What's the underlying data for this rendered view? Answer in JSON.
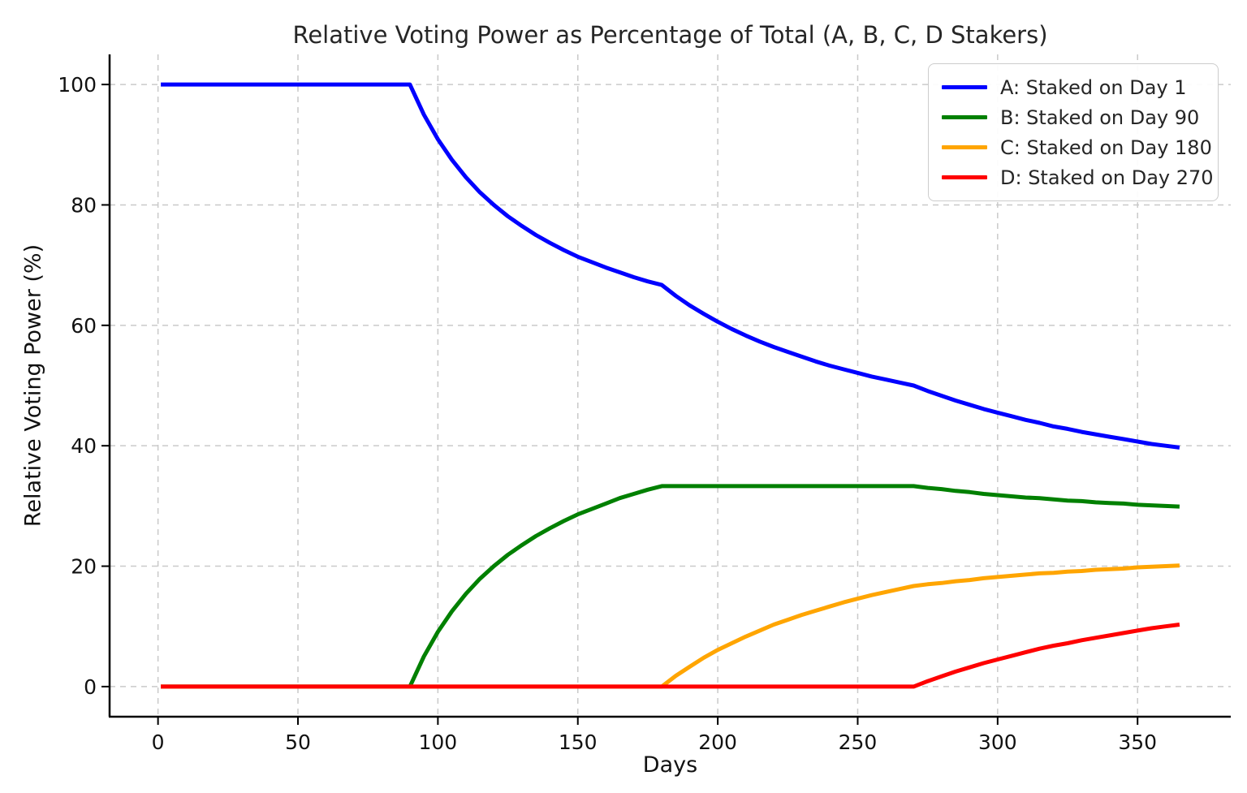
{
  "chart_data": {
    "type": "line",
    "title": "Relative Voting Power as Percentage of Total (A, B, C, D Stakers)",
    "xlabel": "Days",
    "ylabel": "Relative Voting Power (%)",
    "xlim": [
      -17.3,
      383.3
    ],
    "ylim": [
      -5,
      105
    ],
    "x_ticks": [
      0,
      50,
      100,
      150,
      200,
      250,
      300,
      350
    ],
    "y_ticks": [
      0,
      20,
      40,
      60,
      80,
      100
    ],
    "grid": true,
    "legend_position": "upper right",
    "x": [
      1,
      5,
      10,
      15,
      20,
      25,
      30,
      35,
      40,
      45,
      50,
      55,
      60,
      65,
      70,
      75,
      80,
      85,
      90,
      95,
      100,
      105,
      110,
      115,
      120,
      125,
      130,
      135,
      140,
      145,
      150,
      155,
      160,
      165,
      170,
      175,
      180,
      185,
      190,
      195,
      200,
      205,
      210,
      215,
      220,
      225,
      230,
      235,
      240,
      245,
      250,
      255,
      260,
      265,
      270,
      275,
      280,
      285,
      290,
      295,
      300,
      305,
      310,
      315,
      320,
      325,
      330,
      335,
      340,
      345,
      350,
      355,
      360,
      365
    ],
    "series": [
      {
        "name": "A: Staked on Day 1",
        "color": "#0000ff",
        "values": [
          100,
          100,
          100,
          100,
          100,
          100,
          100,
          100,
          100,
          100,
          100,
          100,
          100,
          100,
          100,
          100,
          100,
          100,
          100,
          95,
          90.9,
          87.5,
          84.6,
          82.1,
          80,
          78.1,
          76.5,
          75,
          73.7,
          72.5,
          71.4,
          70.5,
          69.6,
          68.8,
          68,
          67.3,
          66.7,
          64.9,
          63.3,
          61.9,
          60.6,
          59.4,
          58.3,
          57.3,
          56.4,
          55.6,
          54.8,
          54,
          53.3,
          52.7,
          52.1,
          51.5,
          51,
          50.5,
          50,
          49.1,
          48.3,
          47.5,
          46.8,
          46.1,
          45.5,
          44.9,
          44.3,
          43.8,
          43.2,
          42.8,
          42.3,
          41.9,
          41.5,
          41.1,
          40.7,
          40.3,
          40,
          39.7
        ]
      },
      {
        "name": "B: Staked on Day 90",
        "color": "#008000",
        "values": [
          0,
          0,
          0,
          0,
          0,
          0,
          0,
          0,
          0,
          0,
          0,
          0,
          0,
          0,
          0,
          0,
          0,
          0,
          0,
          5,
          9.1,
          12.5,
          15.4,
          17.9,
          20,
          21.9,
          23.5,
          25,
          26.3,
          27.5,
          28.6,
          29.5,
          30.4,
          31.3,
          32,
          32.7,
          33.3,
          33.3,
          33.3,
          33.3,
          33.3,
          33.3,
          33.3,
          33.3,
          33.3,
          33.3,
          33.3,
          33.3,
          33.3,
          33.3,
          33.3,
          33.3,
          33.3,
          33.3,
          33.3,
          33,
          32.8,
          32.5,
          32.3,
          32,
          31.8,
          31.6,
          31.4,
          31.3,
          31.1,
          30.9,
          30.8,
          30.6,
          30.5,
          30.4,
          30.2,
          30.1,
          30,
          29.9
        ]
      },
      {
        "name": "C: Staked on Day 180",
        "color": "#ffa500",
        "values": [
          0,
          0,
          0,
          0,
          0,
          0,
          0,
          0,
          0,
          0,
          0,
          0,
          0,
          0,
          0,
          0,
          0,
          0,
          0,
          0,
          0,
          0,
          0,
          0,
          0,
          0,
          0,
          0,
          0,
          0,
          0,
          0,
          0,
          0,
          0,
          0,
          0,
          1.8,
          3.3,
          4.8,
          6.1,
          7.2,
          8.3,
          9.3,
          10.3,
          11.1,
          11.9,
          12.6,
          13.3,
          14,
          14.6,
          15.2,
          15.7,
          16.2,
          16.7,
          17,
          17.2,
          17.5,
          17.7,
          18,
          18.2,
          18.4,
          18.6,
          18.8,
          18.9,
          19.1,
          19.2,
          19.4,
          19.5,
          19.6,
          19.8,
          19.9,
          20,
          20.1
        ]
      },
      {
        "name": "D: Staked on Day 270",
        "color": "#ff0000",
        "values": [
          0,
          0,
          0,
          0,
          0,
          0,
          0,
          0,
          0,
          0,
          0,
          0,
          0,
          0,
          0,
          0,
          0,
          0,
          0,
          0,
          0,
          0,
          0,
          0,
          0,
          0,
          0,
          0,
          0,
          0,
          0,
          0,
          0,
          0,
          0,
          0,
          0,
          0,
          0,
          0,
          0,
          0,
          0,
          0,
          0,
          0,
          0,
          0,
          0,
          0,
          0,
          0,
          0,
          0,
          0,
          0.9,
          1.7,
          2.5,
          3.2,
          3.9,
          4.5,
          5.1,
          5.7,
          6.3,
          6.8,
          7.2,
          7.7,
          8.1,
          8.5,
          8.9,
          9.3,
          9.7,
          10,
          10.3
        ]
      }
    ]
  }
}
